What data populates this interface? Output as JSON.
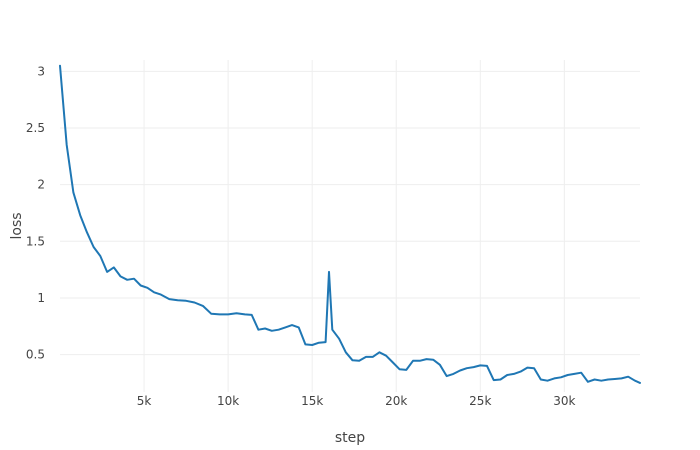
{
  "colors": {
    "series": "#1f77b4",
    "grid": "#eeeeee",
    "text": "#444444",
    "background": "#ffffff"
  },
  "chart_data": {
    "type": "line",
    "title": "",
    "xlabel": "step",
    "ylabel": "loss",
    "xlim": [
      0,
      34500
    ],
    "ylim": [
      0.17,
      3.1
    ],
    "grid": true,
    "legend": "none",
    "x_ticks": [
      {
        "value": 5000,
        "label": "5k"
      },
      {
        "value": 10000,
        "label": "10k"
      },
      {
        "value": 15000,
        "label": "15k"
      },
      {
        "value": 20000,
        "label": "20k"
      },
      {
        "value": 25000,
        "label": "25k"
      },
      {
        "value": 30000,
        "label": "30k"
      }
    ],
    "y_ticks": [
      {
        "value": 0.5,
        "label": "0.5"
      },
      {
        "value": 1,
        "label": "1"
      },
      {
        "value": 1.5,
        "label": "1.5"
      },
      {
        "value": 2,
        "label": "2"
      },
      {
        "value": 2.5,
        "label": "2.5"
      },
      {
        "value": 3,
        "label": "3"
      }
    ],
    "series": [
      {
        "x": [
          0,
          400,
          800,
          1200,
          1600,
          2000,
          2400,
          2800,
          3200,
          3600,
          4000,
          4400,
          4800,
          5200,
          5600,
          6000,
          6500,
          7000,
          7500,
          8000,
          8500,
          9000,
          9500,
          10000,
          10500,
          11000,
          11400,
          11800,
          12200,
          12600,
          13000,
          13400,
          13800,
          14200,
          14600,
          15000,
          15400,
          15800,
          16000,
          16200,
          16600,
          17000,
          17400,
          17800,
          18200,
          18600,
          19000,
          19400,
          19800,
          20200,
          20600,
          21000,
          21400,
          21800,
          22200,
          22600,
          23000,
          23400,
          23800,
          24200,
          24600,
          25000,
          25400,
          25800,
          26200,
          26600,
          27000,
          27400,
          27800,
          28200,
          28600,
          29000,
          29400,
          29800,
          30200,
          30600,
          31000,
          31400,
          31800,
          32200,
          32600,
          33000,
          33400,
          33800,
          34200,
          34500
        ],
        "y": [
          3.05,
          2.35,
          1.93,
          1.73,
          1.58,
          1.45,
          1.37,
          1.23,
          1.27,
          1.19,
          1.16,
          1.17,
          1.11,
          1.09,
          1.05,
          1.03,
          0.99,
          0.98,
          0.975,
          0.96,
          0.93,
          0.86,
          0.855,
          0.855,
          0.865,
          0.855,
          0.85,
          0.72,
          0.73,
          0.71,
          0.72,
          0.74,
          0.76,
          0.74,
          0.59,
          0.585,
          0.605,
          0.61,
          1.23,
          0.72,
          0.64,
          0.52,
          0.45,
          0.445,
          0.48,
          0.48,
          0.52,
          0.49,
          0.43,
          0.37,
          0.365,
          0.445,
          0.445,
          0.46,
          0.455,
          0.41,
          0.31,
          0.33,
          0.36,
          0.38,
          0.39,
          0.405,
          0.4,
          0.275,
          0.28,
          0.32,
          0.33,
          0.35,
          0.385,
          0.38,
          0.28,
          0.27,
          0.29,
          0.3,
          0.32,
          0.33,
          0.34,
          0.26,
          0.28,
          0.27,
          0.28,
          0.285,
          0.29,
          0.305,
          0.27,
          0.25
        ]
      }
    ]
  }
}
